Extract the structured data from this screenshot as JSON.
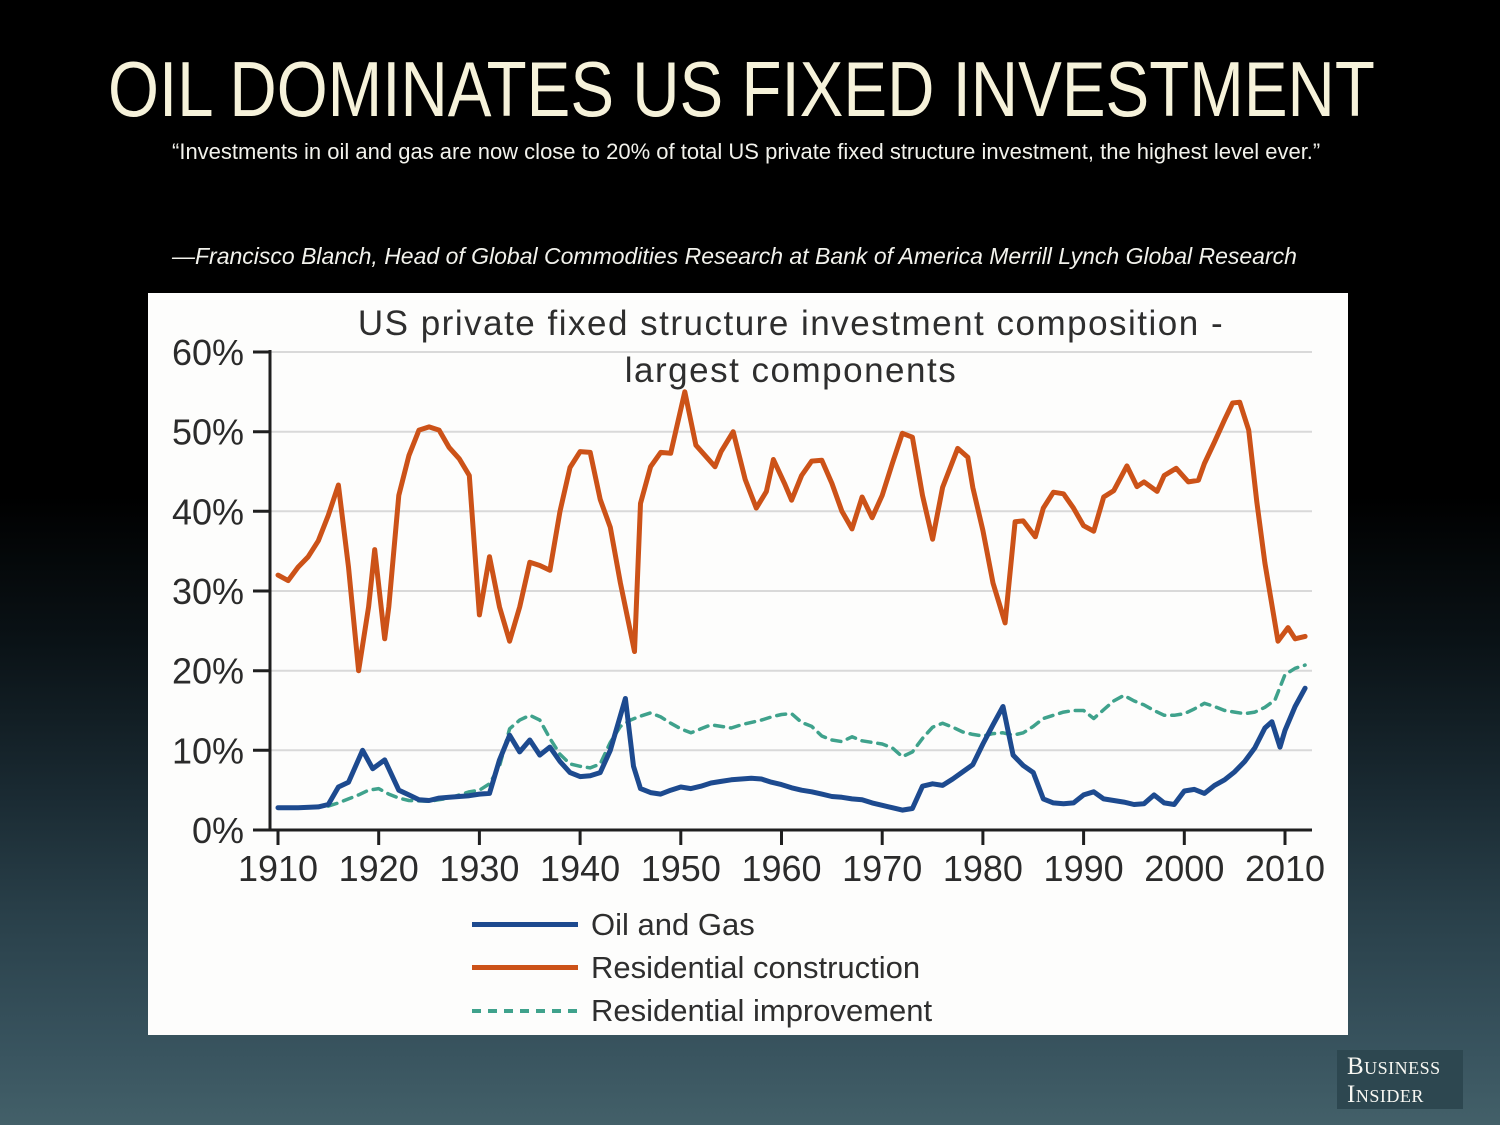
{
  "slide": {
    "title": "OIL DOMINATES US FIXED INVESTMENT",
    "quote": "“Investments in oil and gas are now close to 20% of total US private fixed structure investment, the highest level ever.”",
    "attribution": "—Francisco Blanch, Head of Global Commodities Research at Bank of America Merrill Lynch Global Research"
  },
  "logo": {
    "line1": "Business",
    "line2": "Insider"
  },
  "chart_data": {
    "type": "line",
    "title_line1": "US private fixed structure investment  composition -",
    "title_line2": "largest components",
    "xlabel": "",
    "ylabel": "",
    "xlim": [
      1910,
      2012
    ],
    "ylim": [
      0,
      60
    ],
    "y_suffix": "%",
    "grid": true,
    "grid_color": "#d9d9d9",
    "axis_color": "#1f1f1f",
    "legend_position": "bottom",
    "x_ticks": [
      1910,
      1920,
      1930,
      1940,
      1950,
      1960,
      1970,
      1980,
      1990,
      2000,
      2010
    ],
    "y_ticks": [
      0,
      10,
      20,
      30,
      40,
      50,
      60
    ],
    "series": [
      {
        "id": "oil-and-gas",
        "name": "Oil and Gas",
        "color": "#1d4a8f",
        "style": "solid",
        "width": 5,
        "points": [
          [
            1910,
            2.8
          ],
          [
            1912,
            2.8
          ],
          [
            1914,
            2.9
          ],
          [
            1915,
            3.2
          ],
          [
            1916,
            5.4
          ],
          [
            1917,
            6
          ],
          [
            1918.4,
            10
          ],
          [
            1919.4,
            7.7
          ],
          [
            1920.6,
            8.8
          ],
          [
            1922,
            5
          ],
          [
            1923,
            4.4
          ],
          [
            1924,
            3.8
          ],
          [
            1925,
            3.7
          ],
          [
            1926,
            4
          ],
          [
            1927,
            4.1
          ],
          [
            1928,
            4.2
          ],
          [
            1929,
            4.3
          ],
          [
            1930,
            4.5
          ],
          [
            1931,
            4.6
          ],
          [
            1932,
            8.8
          ],
          [
            1933,
            11.9
          ],
          [
            1934,
            9.8
          ],
          [
            1935,
            11.3
          ],
          [
            1936,
            9.4
          ],
          [
            1937,
            10.4
          ],
          [
            1938,
            8.6
          ],
          [
            1939,
            7.2
          ],
          [
            1940,
            6.7
          ],
          [
            1941,
            6.8
          ],
          [
            1942,
            7.2
          ],
          [
            1943,
            10
          ],
          [
            1944.5,
            16.5
          ],
          [
            1945.3,
            8
          ],
          [
            1946,
            5.2
          ],
          [
            1947,
            4.7
          ],
          [
            1948,
            4.5
          ],
          [
            1949,
            5
          ],
          [
            1950,
            5.4
          ],
          [
            1951,
            5.2
          ],
          [
            1952,
            5.5
          ],
          [
            1953,
            5.9
          ],
          [
            1954,
            6.1
          ],
          [
            1955,
            6.3
          ],
          [
            1956,
            6.4
          ],
          [
            1957,
            6.5
          ],
          [
            1958,
            6.4
          ],
          [
            1959,
            6
          ],
          [
            1960,
            5.7
          ],
          [
            1961,
            5.3
          ],
          [
            1962,
            5
          ],
          [
            1963,
            4.8
          ],
          [
            1964,
            4.5
          ],
          [
            1965,
            4.2
          ],
          [
            1966,
            4.1
          ],
          [
            1967,
            3.9
          ],
          [
            1968,
            3.8
          ],
          [
            1969,
            3.4
          ],
          [
            1970,
            3.1
          ],
          [
            1971,
            2.8
          ],
          [
            1972,
            2.5
          ],
          [
            1973,
            2.7
          ],
          [
            1974,
            5.5
          ],
          [
            1975,
            5.8
          ],
          [
            1976,
            5.6
          ],
          [
            1977,
            6.4
          ],
          [
            1978,
            7.3
          ],
          [
            1979,
            8.2
          ],
          [
            1980,
            10.8
          ],
          [
            1981,
            13.2
          ],
          [
            1982,
            15.5
          ],
          [
            1983,
            9.4
          ],
          [
            1984,
            8.1
          ],
          [
            1985,
            7.2
          ],
          [
            1986,
            3.9
          ],
          [
            1987,
            3.4
          ],
          [
            1988,
            3.3
          ],
          [
            1989,
            3.4
          ],
          [
            1990,
            4.4
          ],
          [
            1991,
            4.8
          ],
          [
            1992,
            3.9
          ],
          [
            1993,
            3.7
          ],
          [
            1994,
            3.5
          ],
          [
            1995,
            3.2
          ],
          [
            1996,
            3.3
          ],
          [
            1997,
            4.4
          ],
          [
            1998,
            3.4
          ],
          [
            1999,
            3.2
          ],
          [
            2000,
            4.9
          ],
          [
            2001,
            5.1
          ],
          [
            2002,
            4.6
          ],
          [
            2003,
            5.6
          ],
          [
            2004,
            6.3
          ],
          [
            2005,
            7.3
          ],
          [
            2006,
            8.6
          ],
          [
            2007,
            10.3
          ],
          [
            2008,
            12.8
          ],
          [
            2008.7,
            13.6
          ],
          [
            2009.5,
            10.4
          ],
          [
            2010,
            12.5
          ],
          [
            2011,
            15.5
          ],
          [
            2012,
            17.8
          ]
        ]
      },
      {
        "id": "residential-construction",
        "name": "Residential construction",
        "color": "#cc5218",
        "style": "solid",
        "width": 5,
        "points": [
          [
            1910,
            32
          ],
          [
            1911,
            31.3
          ],
          [
            1912,
            33
          ],
          [
            1913,
            34.3
          ],
          [
            1914,
            36.3
          ],
          [
            1915,
            39.5
          ],
          [
            1916,
            43.3
          ],
          [
            1917,
            33
          ],
          [
            1918,
            20
          ],
          [
            1919,
            28
          ],
          [
            1919.6,
            35.2
          ],
          [
            1920.6,
            24
          ],
          [
            1921,
            28
          ],
          [
            1922,
            42
          ],
          [
            1923,
            47
          ],
          [
            1924,
            50.2
          ],
          [
            1925,
            50.6
          ],
          [
            1926,
            50.2
          ],
          [
            1927,
            48
          ],
          [
            1928,
            46.6
          ],
          [
            1929,
            44.5
          ],
          [
            1930,
            27
          ],
          [
            1931,
            34.3
          ],
          [
            1932,
            28
          ],
          [
            1933,
            23.7
          ],
          [
            1934,
            28
          ],
          [
            1935,
            33.6
          ],
          [
            1936,
            33.2
          ],
          [
            1937,
            32.6
          ],
          [
            1938,
            40
          ],
          [
            1939,
            45.5
          ],
          [
            1940,
            47.5
          ],
          [
            1941,
            47.4
          ],
          [
            1942,
            41.5
          ],
          [
            1943,
            38
          ],
          [
            1944,
            31
          ],
          [
            1945.4,
            22.4
          ],
          [
            1946,
            41
          ],
          [
            1947,
            45.6
          ],
          [
            1948,
            47.4
          ],
          [
            1949,
            47.3
          ],
          [
            1950.4,
            55
          ],
          [
            1951.5,
            48.3
          ],
          [
            1952,
            47.6
          ],
          [
            1953.4,
            45.6
          ],
          [
            1954,
            47.5
          ],
          [
            1955.2,
            50
          ],
          [
            1956.4,
            44
          ],
          [
            1957.5,
            40.4
          ],
          [
            1958.5,
            42.5
          ],
          [
            1959.2,
            46.5
          ],
          [
            1960.3,
            43.5
          ],
          [
            1961,
            41.4
          ],
          [
            1962,
            44.5
          ],
          [
            1963,
            46.3
          ],
          [
            1964,
            46.4
          ],
          [
            1965,
            43.5
          ],
          [
            1966,
            40
          ],
          [
            1967,
            37.8
          ],
          [
            1968,
            41.8
          ],
          [
            1969,
            39.2
          ],
          [
            1970,
            42
          ],
          [
            1971,
            46
          ],
          [
            1972,
            49.8
          ],
          [
            1973,
            49.3
          ],
          [
            1974,
            42
          ],
          [
            1975,
            36.5
          ],
          [
            1976,
            43
          ],
          [
            1977.5,
            47.9
          ],
          [
            1978.5,
            46.8
          ],
          [
            1979,
            43
          ],
          [
            1980,
            37.6
          ],
          [
            1981,
            31
          ],
          [
            1982.2,
            26
          ],
          [
            1983.2,
            38.7
          ],
          [
            1984,
            38.8
          ],
          [
            1985.2,
            36.8
          ],
          [
            1986,
            40.4
          ],
          [
            1987,
            42.4
          ],
          [
            1988,
            42.2
          ],
          [
            1989,
            40.4
          ],
          [
            1990,
            38.2
          ],
          [
            1991,
            37.5
          ],
          [
            1992,
            41.8
          ],
          [
            1993,
            42.6
          ],
          [
            1994.3,
            45.7
          ],
          [
            1995.3,
            43.1
          ],
          [
            1996,
            43.7
          ],
          [
            1997.3,
            42.5
          ],
          [
            1998,
            44.5
          ],
          [
            1999.2,
            45.4
          ],
          [
            2000.4,
            43.7
          ],
          [
            2001.4,
            43.9
          ],
          [
            2002,
            46
          ],
          [
            2003,
            48.7
          ],
          [
            2004,
            51.5
          ],
          [
            2004.8,
            53.6
          ],
          [
            2005.5,
            53.7
          ],
          [
            2006.4,
            50.2
          ],
          [
            2007.2,
            41.2
          ],
          [
            2008,
            33.5
          ],
          [
            2009.3,
            23.7
          ],
          [
            2010.3,
            25.4
          ],
          [
            2011,
            24
          ],
          [
            2012,
            24.3
          ]
        ]
      },
      {
        "id": "residential-improvement",
        "name": "Residential improvement",
        "color": "#3fa28c",
        "style": "dashed",
        "width": 3.5,
        "points": [
          [
            1915,
            3
          ],
          [
            1916,
            3.4
          ],
          [
            1917,
            3.9
          ],
          [
            1918,
            4.4
          ],
          [
            1919,
            5
          ],
          [
            1920,
            5.2
          ],
          [
            1921,
            4.5
          ],
          [
            1922,
            4
          ],
          [
            1923,
            3.7
          ],
          [
            1925,
            3.6
          ],
          [
            1927,
            4
          ],
          [
            1928,
            4.4
          ],
          [
            1929,
            4.8
          ],
          [
            1930,
            5
          ],
          [
            1931,
            5.8
          ],
          [
            1932,
            8
          ],
          [
            1933,
            12.7
          ],
          [
            1934,
            13.8
          ],
          [
            1935,
            14.4
          ],
          [
            1936,
            13.8
          ],
          [
            1937,
            11.5
          ],
          [
            1938,
            9.5
          ],
          [
            1939,
            8.3
          ],
          [
            1940,
            8
          ],
          [
            1941,
            7.8
          ],
          [
            1942,
            8.3
          ],
          [
            1943,
            11
          ],
          [
            1944,
            13
          ],
          [
            1945,
            13.8
          ],
          [
            1946,
            14.3
          ],
          [
            1947,
            14.7
          ],
          [
            1948,
            14.2
          ],
          [
            1949,
            13.4
          ],
          [
            1950,
            12.7
          ],
          [
            1951,
            12.2
          ],
          [
            1952,
            12.7
          ],
          [
            1953,
            13.2
          ],
          [
            1954,
            13
          ],
          [
            1955,
            12.8
          ],
          [
            1956,
            13.2
          ],
          [
            1957,
            13.5
          ],
          [
            1958,
            13.8
          ],
          [
            1959,
            14.2
          ],
          [
            1960,
            14.5
          ],
          [
            1961,
            14.6
          ],
          [
            1962,
            13.5
          ],
          [
            1963,
            13
          ],
          [
            1964,
            11.8
          ],
          [
            1965,
            11.3
          ],
          [
            1966,
            11.1
          ],
          [
            1967,
            11.7
          ],
          [
            1968,
            11.2
          ],
          [
            1969,
            11
          ],
          [
            1970,
            10.8
          ],
          [
            1971,
            10.3
          ],
          [
            1972,
            9.2
          ],
          [
            1973,
            9.8
          ],
          [
            1974,
            11.5
          ],
          [
            1975,
            12.9
          ],
          [
            1976,
            13.4
          ],
          [
            1977,
            12.9
          ],
          [
            1978,
            12.3
          ],
          [
            1979,
            12
          ],
          [
            1980,
            11.8
          ],
          [
            1981,
            12.1
          ],
          [
            1982,
            12.2
          ],
          [
            1983,
            11.9
          ],
          [
            1984,
            12.2
          ],
          [
            1985,
            13
          ],
          [
            1986,
            14
          ],
          [
            1987,
            14.4
          ],
          [
            1988,
            14.8
          ],
          [
            1989,
            15
          ],
          [
            1990,
            15
          ],
          [
            1991,
            14
          ],
          [
            1992,
            15.1
          ],
          [
            1993,
            16.2
          ],
          [
            1994,
            16.9
          ],
          [
            1995,
            16.2
          ],
          [
            1996,
            15.7
          ],
          [
            1997,
            15
          ],
          [
            1998,
            14.4
          ],
          [
            1999,
            14.4
          ],
          [
            2000,
            14.6
          ],
          [
            2001,
            15.2
          ],
          [
            2002,
            15.9
          ],
          [
            2003,
            15.5
          ],
          [
            2004,
            15
          ],
          [
            2005,
            14.8
          ],
          [
            2006,
            14.6
          ],
          [
            2007,
            14.8
          ],
          [
            2008,
            15.4
          ],
          [
            2009,
            16.3
          ],
          [
            2010,
            19.5
          ],
          [
            2011,
            20.3
          ],
          [
            2012,
            20.7
          ]
        ]
      }
    ]
  }
}
